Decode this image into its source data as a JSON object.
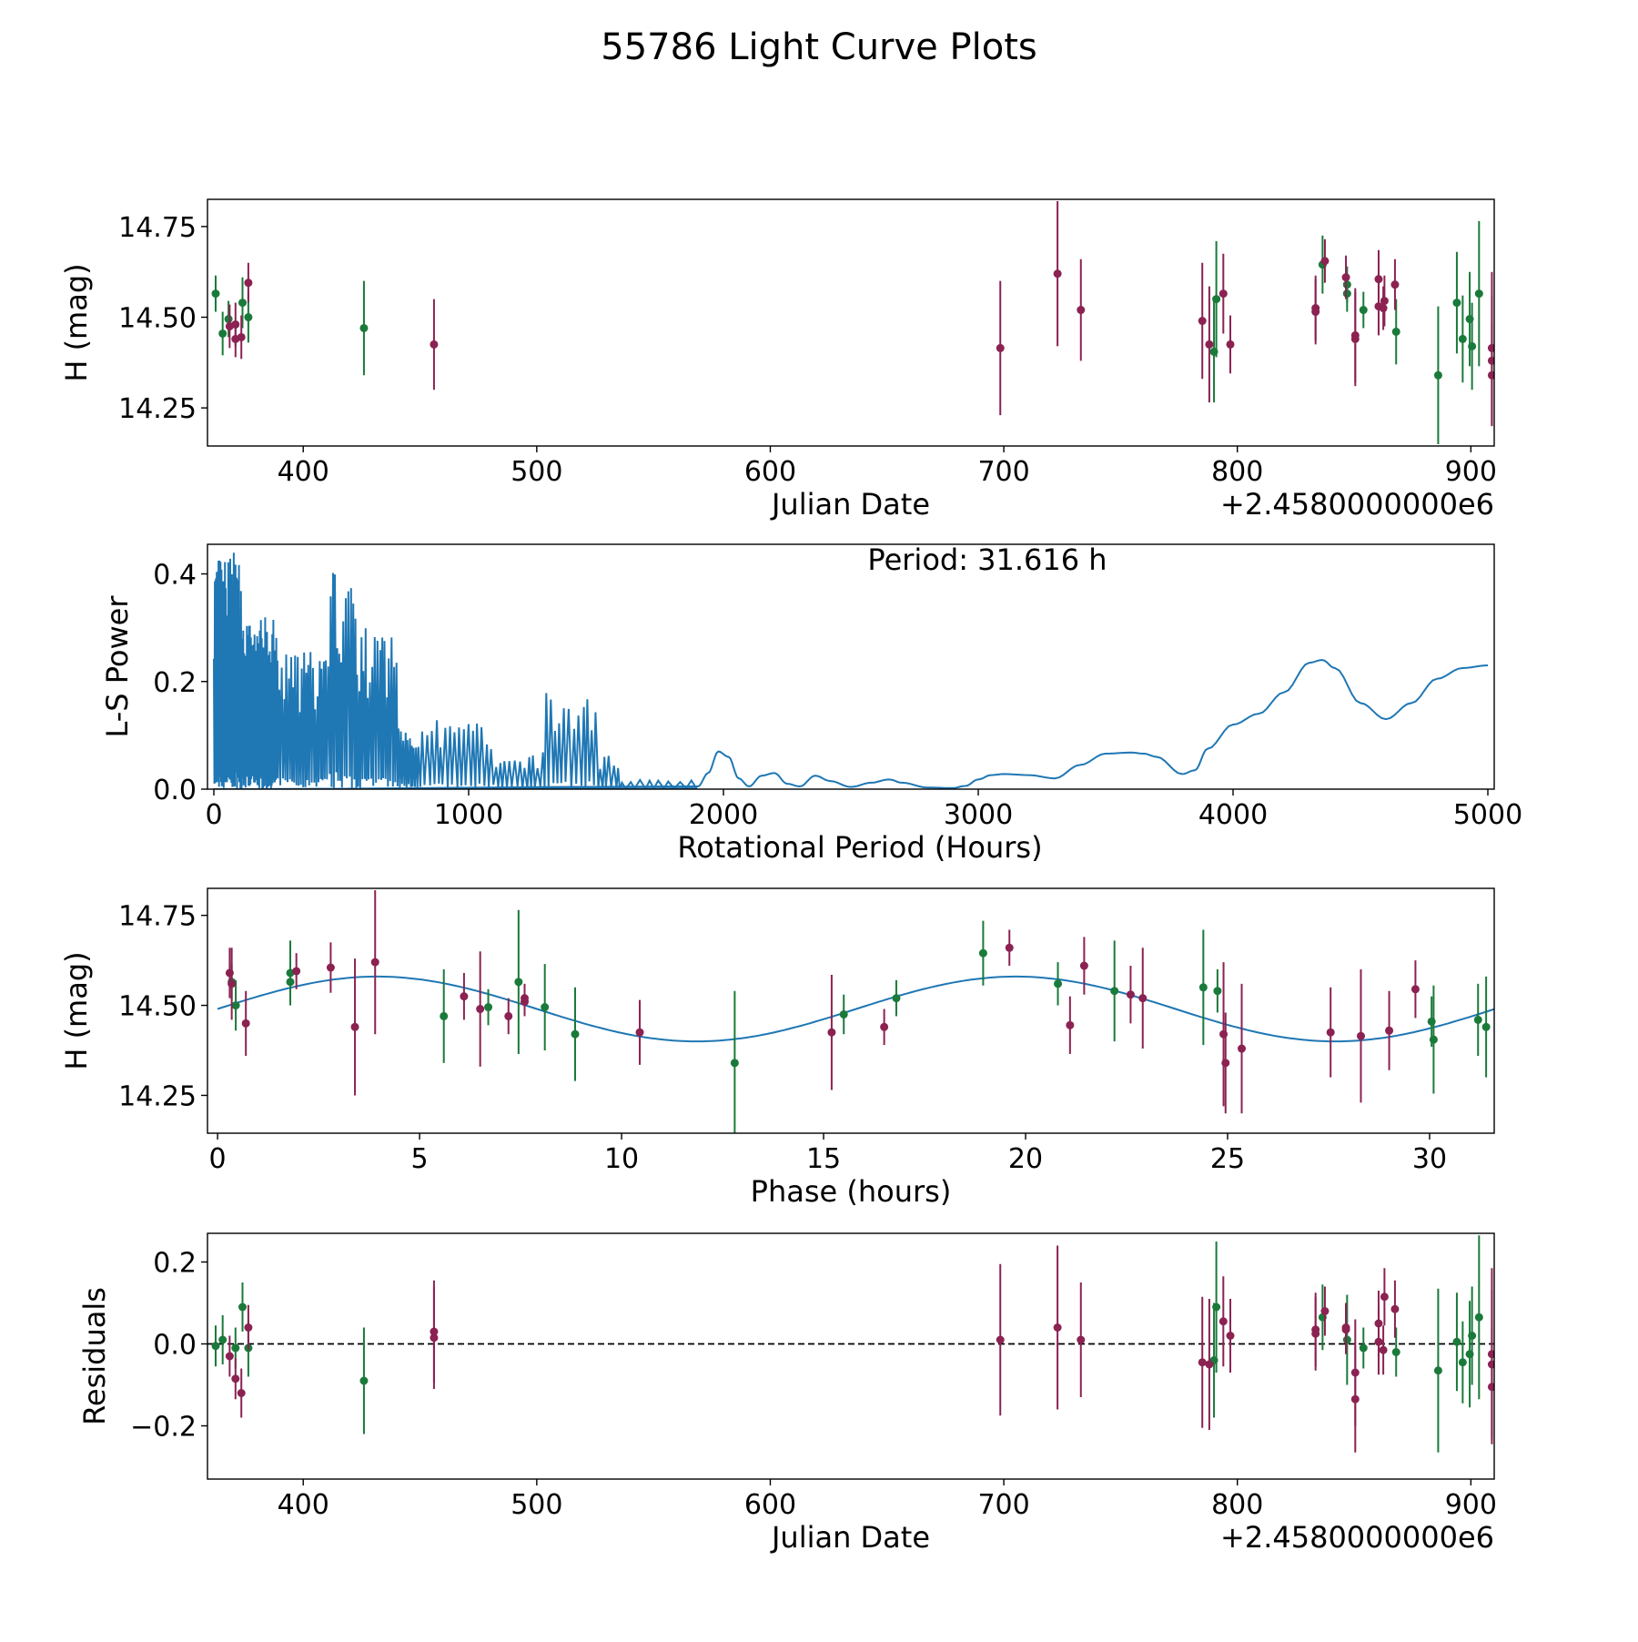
{
  "figure": {
    "title": "55786 Light Curve Plots"
  },
  "colors": {
    "green": "#1a7a3a",
    "purple": "#8b2252",
    "blue": "#1f77b4",
    "axis": "#000000"
  },
  "chart_data": [
    {
      "id": "lightcurve",
      "type": "scatter",
      "title": "",
      "xlabel": "Julian Date",
      "ylabel": "H (mag)",
      "offset_label": "+2.4580000000e6",
      "xlim": [
        359,
        910
      ],
      "ylim": [
        14.145,
        14.825
      ],
      "xticks": [
        400,
        500,
        600,
        700,
        800,
        900
      ],
      "yticks": [
        14.25,
        14.5,
        14.75
      ],
      "ytick_labels": [
        "14.25",
        "14.50",
        "14.75"
      ],
      "series": [
        {
          "name": "green",
          "color": "green",
          "points": [
            {
              "x": 362.5,
              "y": 14.565,
              "e": 0.05
            },
            {
              "x": 365.5,
              "y": 14.455,
              "e": 0.06
            },
            {
              "x": 368,
              "y": 14.495,
              "e": 0.05
            },
            {
              "x": 374,
              "y": 14.54,
              "e": 0.07
            },
            {
              "x": 376.5,
              "y": 14.5,
              "e": 0.07
            },
            {
              "x": 426,
              "y": 14.47,
              "e": 0.13
            },
            {
              "x": 790,
              "y": 14.405,
              "e": 0.14
            },
            {
              "x": 791,
              "y": 14.55,
              "e": 0.16
            },
            {
              "x": 836.5,
              "y": 14.645,
              "e": 0.08
            },
            {
              "x": 847,
              "y": 14.565,
              "e": 0.05
            },
            {
              "x": 847,
              "y": 14.59,
              "e": 0.05
            },
            {
              "x": 854,
              "y": 14.52,
              "e": 0.05
            },
            {
              "x": 868,
              "y": 14.46,
              "e": 0.09
            },
            {
              "x": 886,
              "y": 14.34,
              "e": 0.19
            },
            {
              "x": 894,
              "y": 14.54,
              "e": 0.14
            },
            {
              "x": 896.5,
              "y": 14.44,
              "e": 0.12
            },
            {
              "x": 899.5,
              "y": 14.495,
              "e": 0.13
            },
            {
              "x": 900.5,
              "y": 14.42,
              "e": 0.12
            },
            {
              "x": 903.5,
              "y": 14.565,
              "e": 0.2
            }
          ]
        },
        {
          "name": "purple",
          "color": "purple",
          "points": [
            {
              "x": 368.5,
              "y": 14.475,
              "e": 0.06
            },
            {
              "x": 371,
              "y": 14.44,
              "e": 0.05
            },
            {
              "x": 371,
              "y": 14.48,
              "e": 0.06
            },
            {
              "x": 373.5,
              "y": 14.445,
              "e": 0.06
            },
            {
              "x": 376.5,
              "y": 14.595,
              "e": 0.055
            },
            {
              "x": 456,
              "y": 14.425,
              "e": 0.125
            },
            {
              "x": 698.5,
              "y": 14.415,
              "e": 0.185
            },
            {
              "x": 723,
              "y": 14.62,
              "e": 0.2
            },
            {
              "x": 733,
              "y": 14.52,
              "e": 0.14
            },
            {
              "x": 785,
              "y": 14.49,
              "e": 0.16
            },
            {
              "x": 788,
              "y": 14.425,
              "e": 0.16
            },
            {
              "x": 794,
              "y": 14.565,
              "e": 0.11
            },
            {
              "x": 797,
              "y": 14.425,
              "e": 0.08
            },
            {
              "x": 833.5,
              "y": 14.515,
              "e": 0.09
            },
            {
              "x": 833.5,
              "y": 14.525,
              "e": 0.09
            },
            {
              "x": 837.5,
              "y": 14.655,
              "e": 0.06
            },
            {
              "x": 846.5,
              "y": 14.61,
              "e": 0.06
            },
            {
              "x": 850.5,
              "y": 14.45,
              "e": 0.13
            },
            {
              "x": 850.5,
              "y": 14.44,
              "e": 0.13
            },
            {
              "x": 860.5,
              "y": 14.605,
              "e": 0.08
            },
            {
              "x": 860.5,
              "y": 14.53,
              "e": 0.08
            },
            {
              "x": 862.5,
              "y": 14.525,
              "e": 0.06
            },
            {
              "x": 863,
              "y": 14.545,
              "e": 0.07
            },
            {
              "x": 867.5,
              "y": 14.59,
              "e": 0.07
            },
            {
              "x": 909,
              "y": 14.415,
              "e": 0.21
            },
            {
              "x": 909,
              "y": 14.38,
              "e": 0.18
            },
            {
              "x": 909,
              "y": 14.34,
              "e": 0.14
            }
          ]
        }
      ]
    },
    {
      "id": "periodogram",
      "type": "line",
      "title": "",
      "xlabel": "Rotational Period (Hours)",
      "ylabel": "L-S Power",
      "annotation": "Period: 31.616 h",
      "xlim": [
        -25,
        5025
      ],
      "ylim": [
        0,
        0.455
      ],
      "xticks": [
        0,
        1000,
        2000,
        3000,
        4000,
        5000
      ],
      "yticks": [
        0,
        0.2,
        0.4
      ],
      "ytick_labels": [
        "0.0",
        "0.2",
        "0.4"
      ],
      "series": [
        {
          "name": "power",
          "color": "blue",
          "x": [
            0,
            1900,
            1940,
            1980,
            2020,
            2060,
            2100,
            2150,
            2200,
            2250,
            2300,
            2360,
            2420,
            2500,
            2580,
            2650,
            2700,
            2800,
            2900,
            2950,
            3000,
            3050,
            3100,
            3200,
            3300,
            3400,
            3500,
            3600,
            3650,
            3700,
            3800,
            3850,
            3900,
            4000,
            4100,
            4200,
            4300,
            4350,
            4400,
            4500,
            4600,
            4700,
            4800,
            4900,
            5000
          ],
          "y": [
            0,
            0.005,
            0.03,
            0.07,
            0.06,
            0.02,
            0.005,
            0.025,
            0.03,
            0.01,
            0.005,
            0.025,
            0.015,
            0.004,
            0.012,
            0.018,
            0.012,
            0.003,
            0.002,
            0.006,
            0.018,
            0.026,
            0.028,
            0.026,
            0.02,
            0.045,
            0.066,
            0.068,
            0.066,
            0.06,
            0.028,
            0.035,
            0.075,
            0.12,
            0.14,
            0.18,
            0.235,
            0.24,
            0.225,
            0.16,
            0.13,
            0.16,
            0.205,
            0.225,
            0.23
          ]
        }
      ]
    },
    {
      "id": "phased",
      "type": "scatter",
      "title": "",
      "xlabel": "Phase (hours)",
      "ylabel": "H (mag)",
      "xlim": [
        -0.25,
        31.6
      ],
      "ylim": [
        14.145,
        14.825
      ],
      "xticks": [
        0,
        5,
        10,
        15,
        20,
        25,
        30
      ],
      "yticks": [
        14.25,
        14.5,
        14.75
      ],
      "ytick_labels": [
        "14.25",
        "14.50",
        "14.75"
      ],
      "model": {
        "color": "blue",
        "mean": 14.49,
        "amplitude": 0.09,
        "period": 15.808,
        "phase0": 0,
        "xrange": [
          0,
          31.616
        ]
      },
      "series": [
        {
          "name": "green",
          "color": "green",
          "points": [
            {
              "x": 0.35,
              "y": 14.565,
              "e": 0.05
            },
            {
              "x": 0.45,
              "y": 14.5,
              "e": 0.07
            },
            {
              "x": 1.8,
              "y": 14.565,
              "e": 0.05
            },
            {
              "x": 1.8,
              "y": 14.59,
              "e": 0.09
            },
            {
              "x": 5.6,
              "y": 14.47,
              "e": 0.13
            },
            {
              "x": 6.7,
              "y": 14.495,
              "e": 0.05
            },
            {
              "x": 7.45,
              "y": 14.565,
              "e": 0.2
            },
            {
              "x": 8.1,
              "y": 14.495,
              "e": 0.12
            },
            {
              "x": 8.85,
              "y": 14.42,
              "e": 0.13
            },
            {
              "x": 12.8,
              "y": 14.34,
              "e": 0.2
            },
            {
              "x": 15.5,
              "y": 14.475,
              "e": 0.055
            },
            {
              "x": 16.8,
              "y": 14.52,
              "e": 0.05
            },
            {
              "x": 18.95,
              "y": 14.645,
              "e": 0.09
            },
            {
              "x": 20.8,
              "y": 14.56,
              "e": 0.06
            },
            {
              "x": 22.2,
              "y": 14.54,
              "e": 0.14
            },
            {
              "x": 24.4,
              "y": 14.55,
              "e": 0.16
            },
            {
              "x": 24.75,
              "y": 14.54,
              "e": 0.06
            },
            {
              "x": 30.05,
              "y": 14.455,
              "e": 0.07
            },
            {
              "x": 30.1,
              "y": 14.405,
              "e": 0.15
            },
            {
              "x": 31.2,
              "y": 14.46,
              "e": 0.1
            },
            {
              "x": 31.4,
              "y": 14.44,
              "e": 0.14
            }
          ]
        },
        {
          "name": "purple",
          "color": "purple",
          "points": [
            {
              "x": 0.3,
              "y": 14.59,
              "e": 0.07
            },
            {
              "x": 0.35,
              "y": 14.56,
              "e": 0.1
            },
            {
              "x": 0.7,
              "y": 14.45,
              "e": 0.09
            },
            {
              "x": 1.95,
              "y": 14.595,
              "e": 0.05
            },
            {
              "x": 2.8,
              "y": 14.605,
              "e": 0.07
            },
            {
              "x": 3.4,
              "y": 14.44,
              "e": 0.19
            },
            {
              "x": 3.9,
              "y": 14.62,
              "e": 0.2
            },
            {
              "x": 6.1,
              "y": 14.525,
              "e": 0.065
            },
            {
              "x": 6.5,
              "y": 14.49,
              "e": 0.16
            },
            {
              "x": 7.2,
              "y": 14.47,
              "e": 0.05
            },
            {
              "x": 7.6,
              "y": 14.52,
              "e": 0.04
            },
            {
              "x": 7.6,
              "y": 14.51,
              "e": 0.04
            },
            {
              "x": 10.45,
              "y": 14.425,
              "e": 0.09
            },
            {
              "x": 15.2,
              "y": 14.425,
              "e": 0.16
            },
            {
              "x": 16.5,
              "y": 14.44,
              "e": 0.05
            },
            {
              "x": 19.6,
              "y": 14.66,
              "e": 0.05
            },
            {
              "x": 21.1,
              "y": 14.445,
              "e": 0.08
            },
            {
              "x": 21.45,
              "y": 14.61,
              "e": 0.08
            },
            {
              "x": 22.6,
              "y": 14.53,
              "e": 0.08
            },
            {
              "x": 22.9,
              "y": 14.52,
              "e": 0.14
            },
            {
              "x": 24.9,
              "y": 14.42,
              "e": 0.2
            },
            {
              "x": 24.95,
              "y": 14.34,
              "e": 0.14
            },
            {
              "x": 25.35,
              "y": 14.38,
              "e": 0.18
            },
            {
              "x": 27.55,
              "y": 14.425,
              "e": 0.125
            },
            {
              "x": 28.3,
              "y": 14.415,
              "e": 0.185
            },
            {
              "x": 29.0,
              "y": 14.43,
              "e": 0.11
            },
            {
              "x": 29.65,
              "y": 14.545,
              "e": 0.08
            }
          ]
        }
      ]
    },
    {
      "id": "residuals",
      "type": "scatter",
      "title": "",
      "xlabel": "Julian Date",
      "ylabel": "Residuals",
      "offset_label": "+2.4580000000e6",
      "xlim": [
        359,
        910
      ],
      "ylim": [
        -0.33,
        0.27
      ],
      "xticks": [
        400,
        500,
        600,
        700,
        800,
        900
      ],
      "yticks": [
        -0.2,
        0,
        0.2
      ],
      "ytick_labels": [
        "−0.2",
        "0.0",
        "0.2"
      ],
      "zero_line": true,
      "series": [
        {
          "name": "green",
          "color": "green",
          "points": [
            {
              "x": 362.5,
              "y": -0.005,
              "e": 0.05
            },
            {
              "x": 365.5,
              "y": 0.01,
              "e": 0.06
            },
            {
              "x": 371,
              "y": -0.01,
              "e": 0.05
            },
            {
              "x": 374,
              "y": 0.09,
              "e": 0.06
            },
            {
              "x": 376.5,
              "y": -0.01,
              "e": 0.07
            },
            {
              "x": 426,
              "y": -0.09,
              "e": 0.13
            },
            {
              "x": 790,
              "y": -0.04,
              "e": 0.14
            },
            {
              "x": 791,
              "y": 0.09,
              "e": 0.16
            },
            {
              "x": 836.5,
              "y": 0.065,
              "e": 0.08
            },
            {
              "x": 847,
              "y": 0.01,
              "e": 0.11
            },
            {
              "x": 854,
              "y": -0.01,
              "e": 0.05
            },
            {
              "x": 868,
              "y": -0.02,
              "e": 0.06
            },
            {
              "x": 886,
              "y": -0.065,
              "e": 0.2
            },
            {
              "x": 894,
              "y": 0.005,
              "e": 0.12
            },
            {
              "x": 896.5,
              "y": -0.045,
              "e": 0.1
            },
            {
              "x": 899.5,
              "y": -0.025,
              "e": 0.13
            },
            {
              "x": 900.5,
              "y": 0.02,
              "e": 0.12
            },
            {
              "x": 903.5,
              "y": 0.065,
              "e": 0.2
            }
          ]
        },
        {
          "name": "purple",
          "color": "purple",
          "points": [
            {
              "x": 368.5,
              "y": -0.03,
              "e": 0.05
            },
            {
              "x": 371,
              "y": -0.085,
              "e": 0.05
            },
            {
              "x": 373.5,
              "y": -0.12,
              "e": 0.06
            },
            {
              "x": 376.5,
              "y": 0.04,
              "e": 0.055
            },
            {
              "x": 456,
              "y": 0.015,
              "e": 0.125
            },
            {
              "x": 456,
              "y": 0.03,
              "e": 0.125
            },
            {
              "x": 698.5,
              "y": 0.01,
              "e": 0.185
            },
            {
              "x": 723,
              "y": 0.04,
              "e": 0.2
            },
            {
              "x": 733,
              "y": 0.01,
              "e": 0.14
            },
            {
              "x": 785,
              "y": -0.045,
              "e": 0.16
            },
            {
              "x": 788,
              "y": -0.05,
              "e": 0.16
            },
            {
              "x": 794,
              "y": 0.055,
              "e": 0.11
            },
            {
              "x": 797,
              "y": 0.02,
              "e": 0.09
            },
            {
              "x": 833.5,
              "y": 0.035,
              "e": 0.09
            },
            {
              "x": 833.5,
              "y": 0.025,
              "e": 0.09
            },
            {
              "x": 837.5,
              "y": 0.08,
              "e": 0.06
            },
            {
              "x": 846.5,
              "y": 0.035,
              "e": 0.06
            },
            {
              "x": 846.5,
              "y": 0.04,
              "e": 0.06
            },
            {
              "x": 850.5,
              "y": -0.07,
              "e": 0.13
            },
            {
              "x": 850.5,
              "y": -0.135,
              "e": 0.13
            },
            {
              "x": 860.5,
              "y": 0.05,
              "e": 0.08
            },
            {
              "x": 860.5,
              "y": 0.005,
              "e": 0.08
            },
            {
              "x": 862.5,
              "y": -0.015,
              "e": 0.06
            },
            {
              "x": 863,
              "y": 0.115,
              "e": 0.07
            },
            {
              "x": 867.5,
              "y": 0.085,
              "e": 0.07
            },
            {
              "x": 909,
              "y": -0.025,
              "e": 0.21
            },
            {
              "x": 909,
              "y": -0.05,
              "e": 0.18
            },
            {
              "x": 909,
              "y": -0.105,
              "e": 0.14
            }
          ]
        }
      ]
    }
  ]
}
